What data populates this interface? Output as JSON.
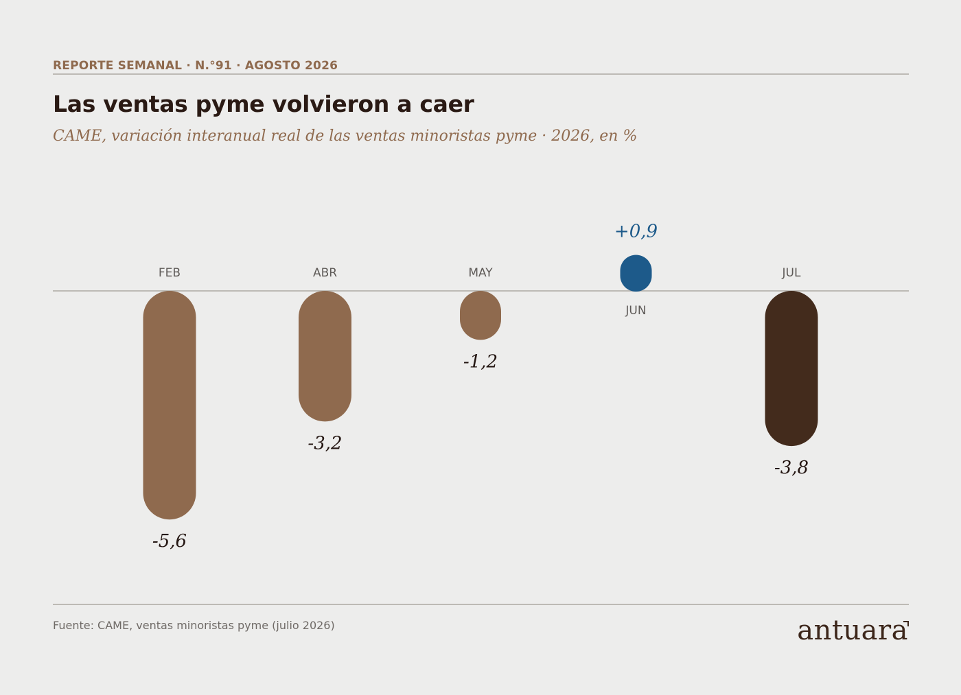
{
  "header": {
    "kicker": "REPORTE SEMANAL · N.°91 · AGOSTO 2026",
    "title": "Las ventas pyme volvieron a caer",
    "subtitle": "CAME, variación interanual real de las ventas minoristas pyme · 2026, en %"
  },
  "footer": {
    "source": "Fuente: CAME, ventas minoristas pyme (julio 2026)",
    "brand": "antuara"
  },
  "colors": {
    "background": "#ededec",
    "accent_brown": "#8f6a4e",
    "dark_brown": "#432b1c",
    "positive_blue": "#1d5a8a",
    "baseline": "#bdbab5",
    "axis_label": "#5e5a57",
    "value_label": "#241612"
  },
  "chart_data": {
    "type": "bar",
    "title": "Las ventas pyme volvieron a caer",
    "subtitle": "CAME, variación interanual real de las ventas minoristas pyme · 2026, en %",
    "categories": [
      "FEB",
      "ABR",
      "MAY",
      "JUN",
      "JUL"
    ],
    "values": [
      -5.6,
      -3.2,
      -1.2,
      0.9,
      -3.8
    ],
    "value_labels": [
      "-5,6",
      "-3,2",
      "-1,2",
      "+0,9",
      "-3,8"
    ],
    "bar_colors": [
      "#8f6a4e",
      "#8f6a4e",
      "#8f6a4e",
      "#1d5a8a",
      "#432b1c"
    ],
    "ylim": [
      -5.6,
      0.9
    ],
    "xlabel": "",
    "ylabel": "",
    "grid": false,
    "baseline_at": 0
  }
}
